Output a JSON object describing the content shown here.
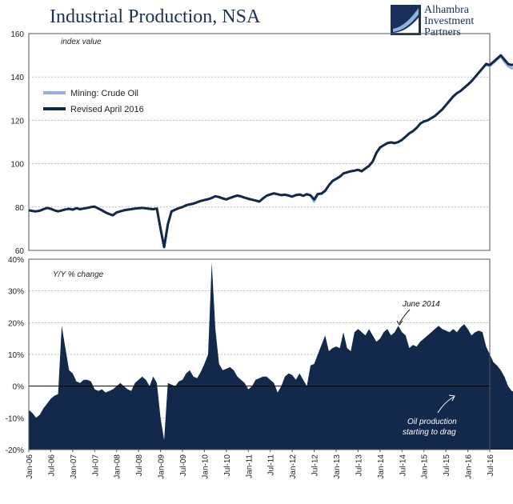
{
  "title": "Industrial Production, NSA",
  "logo": {
    "lines": [
      "Alhambra",
      "Investment",
      "Partners"
    ],
    "colors": {
      "navy": "#1a2f5a",
      "light": "#8fb3dc"
    }
  },
  "colors": {
    "crude_oil": "#8fb3dc",
    "revised": "#13294b",
    "area": "#13294b",
    "grid": "#bbbbbb"
  },
  "chart_data": [
    {
      "type": "line",
      "note": "index value",
      "x_start": "2006-01",
      "ylim": [
        60,
        160
      ],
      "yticks": [
        60,
        80,
        100,
        120,
        140,
        160
      ],
      "grid": true,
      "legend_position": "top-left",
      "series": [
        {
          "name": "Mining:  Crude Oil",
          "color": "#8fb3dc",
          "values": [
            78.5,
            78.2,
            78.0,
            78.3,
            79.0,
            79.6,
            79.2,
            78.5,
            78.0,
            78.4,
            78.9,
            79.2,
            78.8,
            79.5,
            79.0,
            79.3,
            79.6,
            80.0,
            80.2,
            79.3,
            78.5,
            77.5,
            76.8,
            76.2,
            77.5,
            78.0,
            78.5,
            78.8,
            79.0,
            79.3,
            79.5,
            79.6,
            79.4,
            79.2,
            79.0,
            79.3,
            70.0,
            61.5,
            72.0,
            78.0,
            78.8,
            79.5,
            80.0,
            80.8,
            81.2,
            81.6,
            82.2,
            82.8,
            83.2,
            83.6,
            84.2,
            85.0,
            84.6,
            84.0,
            83.5,
            84.2,
            84.8,
            85.3,
            84.9,
            84.3,
            83.8,
            83.4,
            83.0,
            82.5,
            84.0,
            85.2,
            85.8,
            86.3,
            85.9,
            85.5,
            85.7,
            85.3,
            84.8,
            85.5,
            85.8,
            85.2,
            85.9,
            85.4,
            82.5,
            86.0,
            86.2,
            87.5,
            90.0,
            92.0,
            93.0,
            94.0,
            95.5,
            96.0,
            96.5,
            96.8,
            97.2,
            96.5,
            97.8,
            99.0,
            101.0,
            105.0,
            107.5,
            108.5,
            109.5,
            109.8,
            109.5,
            110.0,
            111.0,
            112.5,
            114.0,
            115.0,
            116.5,
            118.5,
            119.5,
            120.0,
            121.0,
            122.0,
            123.5,
            125.0,
            127.0,
            129.0,
            131.0,
            132.5,
            133.5,
            135.0,
            136.5,
            138.0,
            140.0,
            142.0,
            144.0,
            145.5,
            145.0,
            146.5,
            148.0,
            149.5,
            147.0,
            145.0,
            144.0,
            144.5,
            143.5,
            143.0,
            142.5,
            142.0,
            141.0,
            140.0,
            139.0
          ],
          "end": "2015-10"
        },
        {
          "name": "Revised April 2016",
          "color": "#13294b",
          "values": [
            78.5,
            78.2,
            78.0,
            78.3,
            79.0,
            79.6,
            79.2,
            78.5,
            78.0,
            78.4,
            78.9,
            79.2,
            78.8,
            79.5,
            79.0,
            79.3,
            79.6,
            80.0,
            80.2,
            79.3,
            78.5,
            77.5,
            76.8,
            76.2,
            77.5,
            78.0,
            78.5,
            78.8,
            79.0,
            79.3,
            79.5,
            79.6,
            79.4,
            79.2,
            79.0,
            79.3,
            70.0,
            61.5,
            72.0,
            78.0,
            78.8,
            79.5,
            80.0,
            80.8,
            81.2,
            81.6,
            82.2,
            82.8,
            83.2,
            83.6,
            84.2,
            85.0,
            84.6,
            84.0,
            83.5,
            84.2,
            84.8,
            85.3,
            84.9,
            84.3,
            83.8,
            83.4,
            83.0,
            82.5,
            84.0,
            85.2,
            85.8,
            86.3,
            85.9,
            85.5,
            85.7,
            85.3,
            84.8,
            85.5,
            85.8,
            85.2,
            85.9,
            85.4,
            83.5,
            86.0,
            86.2,
            87.5,
            90.0,
            92.0,
            93.0,
            94.0,
            95.5,
            96.0,
            96.5,
            96.8,
            97.2,
            96.5,
            97.8,
            99.0,
            101.0,
            105.0,
            107.5,
            108.5,
            109.5,
            109.8,
            109.5,
            110.0,
            111.0,
            112.5,
            114.0,
            115.0,
            116.5,
            118.5,
            119.5,
            120.0,
            121.0,
            122.0,
            123.5,
            125.0,
            127.0,
            129.0,
            131.0,
            132.5,
            133.5,
            135.0,
            136.5,
            138.0,
            140.0,
            142.0,
            144.0,
            146.0,
            145.5,
            147.0,
            148.5,
            150.0,
            148.0,
            146.0,
            145.5,
            146.0,
            145.5,
            145.0,
            144.5,
            144.0,
            143.0,
            142.5,
            142.0,
            141.5,
            141.0,
            140.0,
            138.0,
            136.5,
            133.5,
            131.0
          ],
          "end": "2016-07"
        }
      ]
    },
    {
      "type": "area",
      "note": "Y/Y % change",
      "x_start": "2006-01",
      "ylim": [
        -20,
        40
      ],
      "yticks": [
        -20,
        -10,
        0,
        10,
        20,
        30,
        40
      ],
      "ytick_labels": [
        "-20%",
        "-10%",
        "0%",
        "10%",
        "20%",
        "30%",
        "40%"
      ],
      "grid": true,
      "color": "#13294b",
      "values": [
        -7.5,
        -8.5,
        -10,
        -9,
        -7,
        -5.5,
        -4,
        -3,
        -2.5,
        19,
        12,
        5,
        4,
        1.5,
        1,
        2,
        2,
        1.5,
        -1,
        -1.5,
        -1,
        -2,
        -1.5,
        -1,
        0,
        1,
        0,
        -1,
        -1.5,
        1,
        2,
        3,
        2,
        0,
        3,
        1,
        -10,
        -17,
        1,
        0.5,
        0,
        1.5,
        2,
        4,
        5,
        3,
        2.5,
        4.5,
        7,
        10,
        39,
        18,
        7,
        5,
        5.5,
        6,
        5,
        3,
        2,
        1,
        -1,
        0,
        2,
        2.5,
        3,
        3,
        2,
        1,
        -2,
        0,
        3,
        4,
        3.5,
        2,
        4,
        2,
        0,
        6.5,
        7,
        10,
        13,
        16,
        11,
        12,
        12.5,
        12,
        17,
        12,
        11,
        17,
        18,
        17,
        16,
        18,
        16,
        14,
        15,
        17,
        18,
        16,
        17,
        19,
        17,
        16,
        12,
        13,
        12.5,
        14,
        15,
        16,
        17,
        18,
        19,
        18,
        17.5,
        17,
        18,
        17,
        18.5,
        19.5,
        18,
        16,
        17,
        17.5,
        17,
        12.5,
        10,
        7.5,
        6.5,
        5,
        3,
        0,
        -1.5,
        -2,
        -3,
        -4,
        -6,
        -8,
        -7,
        -8,
        -10.5
      ],
      "annotations": [
        "June 2014",
        "Oil production",
        "starting to drag"
      ],
      "x_tick_labels": [
        "Jan-06",
        "Jul-06",
        "Jan-07",
        "Jul-07",
        "Jan-08",
        "Jul-08",
        "Jan-09",
        "Jul-09",
        "Jan-10",
        "Jul-10",
        "Jan-11",
        "Jul-11",
        "Jan-12",
        "Jul-12",
        "Jan-13",
        "Jul-13",
        "Jan-14",
        "Jul-14",
        "Jan-15",
        "Jul-15",
        "Jan-16",
        "Jul-16"
      ]
    }
  ]
}
